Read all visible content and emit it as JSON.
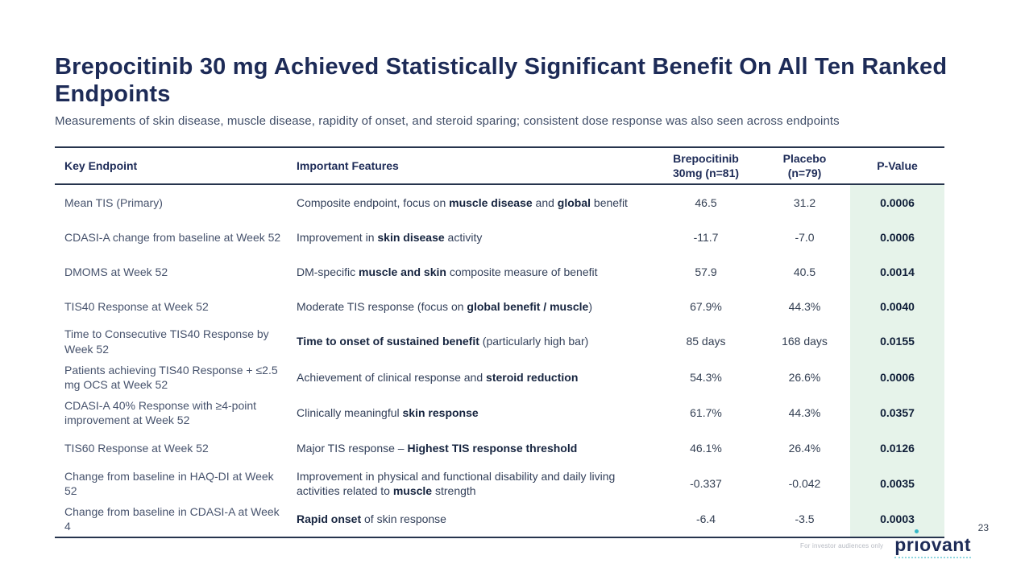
{
  "slide": {
    "title": "Brepocitinib 30 mg Achieved Statistically Significant Benefit On All Ten Ranked Endpoints",
    "subtitle": "Measurements of skin disease, muscle disease, rapidity of onset, and steroid sparing; consistent dose response was also seen across endpoints",
    "page_number": "23",
    "footer_note": "For investor audiences only",
    "logo_text_left": "pr",
    "logo_text_i": "ı",
    "logo_text_right": "ovant"
  },
  "colors": {
    "navy": "#1d2b57",
    "p_value_highlight": "#e6f3ea",
    "teal_accent": "#35b7c6"
  },
  "table": {
    "columns": [
      {
        "id": "endpoint",
        "label_lines": [
          "Key Endpoint"
        ],
        "align": "left"
      },
      {
        "id": "features",
        "label_lines": [
          "Important Features"
        ],
        "align": "left"
      },
      {
        "id": "brepocitinib",
        "label_lines": [
          "Brepocitinib",
          "30mg (n=81)"
        ],
        "align": "center"
      },
      {
        "id": "placebo",
        "label_lines": [
          "Placebo",
          "(n=79)"
        ],
        "align": "center"
      },
      {
        "id": "p_value",
        "label_lines": [
          "P-Value"
        ],
        "align": "center",
        "highlight": true
      }
    ],
    "rows": [
      {
        "endpoint": "Mean TIS (Primary)",
        "features": [
          {
            "t": "Composite endpoint, focus on "
          },
          {
            "t": "muscle disease",
            "b": true
          },
          {
            "t": " and "
          },
          {
            "t": "global",
            "b": true
          },
          {
            "t": " benefit"
          }
        ],
        "brepocitinib": "46.5",
        "placebo": "31.2",
        "p_value": "0.0006"
      },
      {
        "endpoint": "CDASI-A change from baseline at Week 52",
        "features": [
          {
            "t": "Improvement in "
          },
          {
            "t": "skin disease",
            "b": true
          },
          {
            "t": " activity"
          }
        ],
        "brepocitinib": "-11.7",
        "placebo": "-7.0",
        "p_value": "0.0006"
      },
      {
        "endpoint": "DMOMS at Week 52",
        "features": [
          {
            "t": "DM-specific "
          },
          {
            "t": "muscle and skin",
            "b": true
          },
          {
            "t": " composite measure of benefit"
          }
        ],
        "brepocitinib": "57.9",
        "placebo": "40.5",
        "p_value": "0.0014"
      },
      {
        "endpoint": "TIS40 Response at Week 52",
        "features": [
          {
            "t": "Moderate TIS response (focus on "
          },
          {
            "t": "global benefit / muscle",
            "b": true
          },
          {
            "t": ")"
          }
        ],
        "brepocitinib": "67.9%",
        "placebo": "44.3%",
        "p_value": "0.0040"
      },
      {
        "endpoint": "Time to Consecutive TIS40 Response by Week 52",
        "features": [
          {
            "t": "Time to onset of sustained benefit",
            "b": true
          },
          {
            "t": " (particularly high bar)"
          }
        ],
        "brepocitinib": "85 days",
        "placebo": "168 days",
        "p_value": "0.0155"
      },
      {
        "endpoint": "Patients achieving TIS40 Response + ≤2.5 mg OCS at Week 52",
        "features": [
          {
            "t": "Achievement of clinical response and "
          },
          {
            "t": "steroid reduction",
            "b": true
          }
        ],
        "brepocitinib": "54.3%",
        "placebo": "26.6%",
        "p_value": "0.0006"
      },
      {
        "endpoint": "CDASI-A 40% Response with ≥4-point improvement at Week 52",
        "features": [
          {
            "t": "Clinically meaningful "
          },
          {
            "t": "skin response",
            "b": true
          }
        ],
        "brepocitinib": "61.7%",
        "placebo": "44.3%",
        "p_value": "0.0357"
      },
      {
        "endpoint": "TIS60 Response at Week 52",
        "features": [
          {
            "t": "Major TIS response – "
          },
          {
            "t": "Highest TIS response threshold",
            "b": true
          }
        ],
        "brepocitinib": "46.1%",
        "placebo": "26.4%",
        "p_value": "0.0126"
      },
      {
        "endpoint": "Change from baseline in HAQ-DI at Week 52",
        "features": [
          {
            "t": "Improvement in physical and functional disability and daily living activities related to "
          },
          {
            "t": "muscle",
            "b": true
          },
          {
            "t": " strength"
          }
        ],
        "brepocitinib": "-0.337",
        "placebo": "-0.042",
        "p_value": "0.0035"
      },
      {
        "endpoint": "Change from baseline in CDASI-A at Week 4",
        "features": [
          {
            "t": "Rapid onset",
            "b": true
          },
          {
            "t": " of skin response"
          }
        ],
        "brepocitinib": "-6.4",
        "placebo": "-3.5",
        "p_value": "0.0003"
      }
    ]
  }
}
